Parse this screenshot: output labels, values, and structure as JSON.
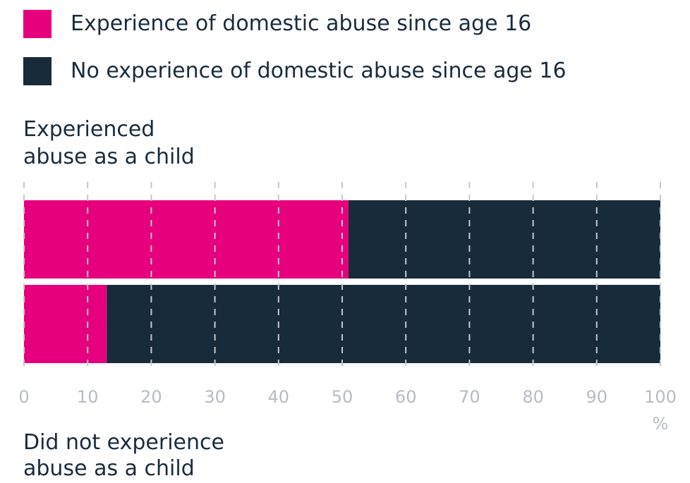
{
  "legend": [
    {
      "label": "Experience of domestic abuse since age 16",
      "color": "#e6007e"
    },
    {
      "label": "No experience of domestic abuse since age 16",
      "color": "#182b3a"
    }
  ],
  "chart_data": {
    "type": "bar",
    "orientation": "horizontal",
    "stacked": true,
    "categories": [
      "Experienced abuse as a child",
      "Did not experience abuse as a child"
    ],
    "category_label_lines": [
      [
        "Experienced",
        "abuse as a child"
      ],
      [
        "Did not experience",
        "abuse as a child"
      ]
    ],
    "series": [
      {
        "name": "Experience of domestic abuse since age 16",
        "values": [
          51,
          13
        ],
        "color": "#e6007e"
      },
      {
        "name": "No experience of domestic abuse since age 16",
        "values": [
          49,
          87
        ],
        "color": "#182b3a"
      }
    ],
    "xlim": [
      0,
      100
    ],
    "xticks": [
      0,
      10,
      20,
      30,
      40,
      50,
      60,
      70,
      80,
      90,
      100
    ],
    "xunit": "%",
    "grid": true,
    "legend_position": "top-left"
  }
}
